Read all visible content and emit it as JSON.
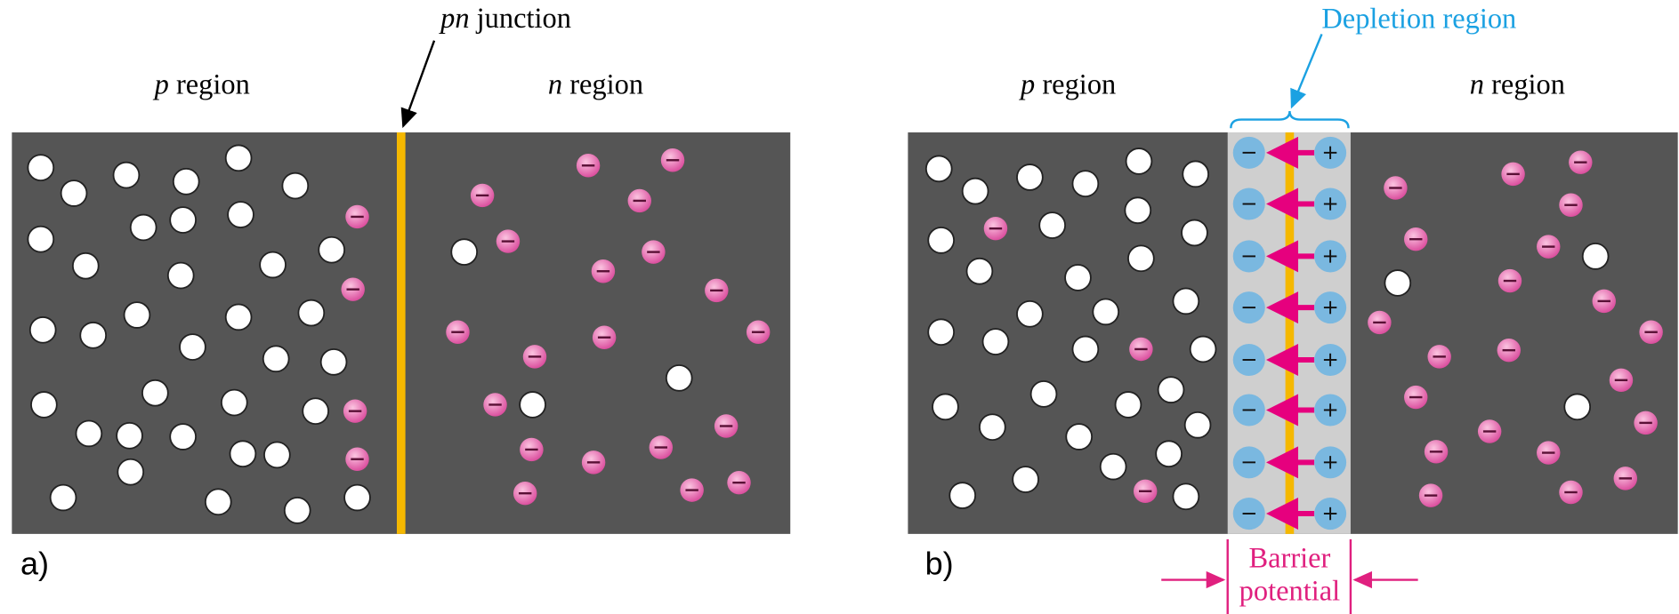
{
  "panel_a": {
    "label": "a)",
    "junction_label": [
      "pn",
      "junction"
    ],
    "p_region": [
      "p",
      "region"
    ],
    "n_region": [
      "n",
      "region"
    ]
  },
  "panel_b": {
    "label": "b)",
    "depletion_label": "Depletion region",
    "p_region": [
      "p",
      "region"
    ],
    "n_region": [
      "n",
      "region"
    ],
    "barrier_label": [
      "Barrier",
      "potential"
    ]
  }
}
